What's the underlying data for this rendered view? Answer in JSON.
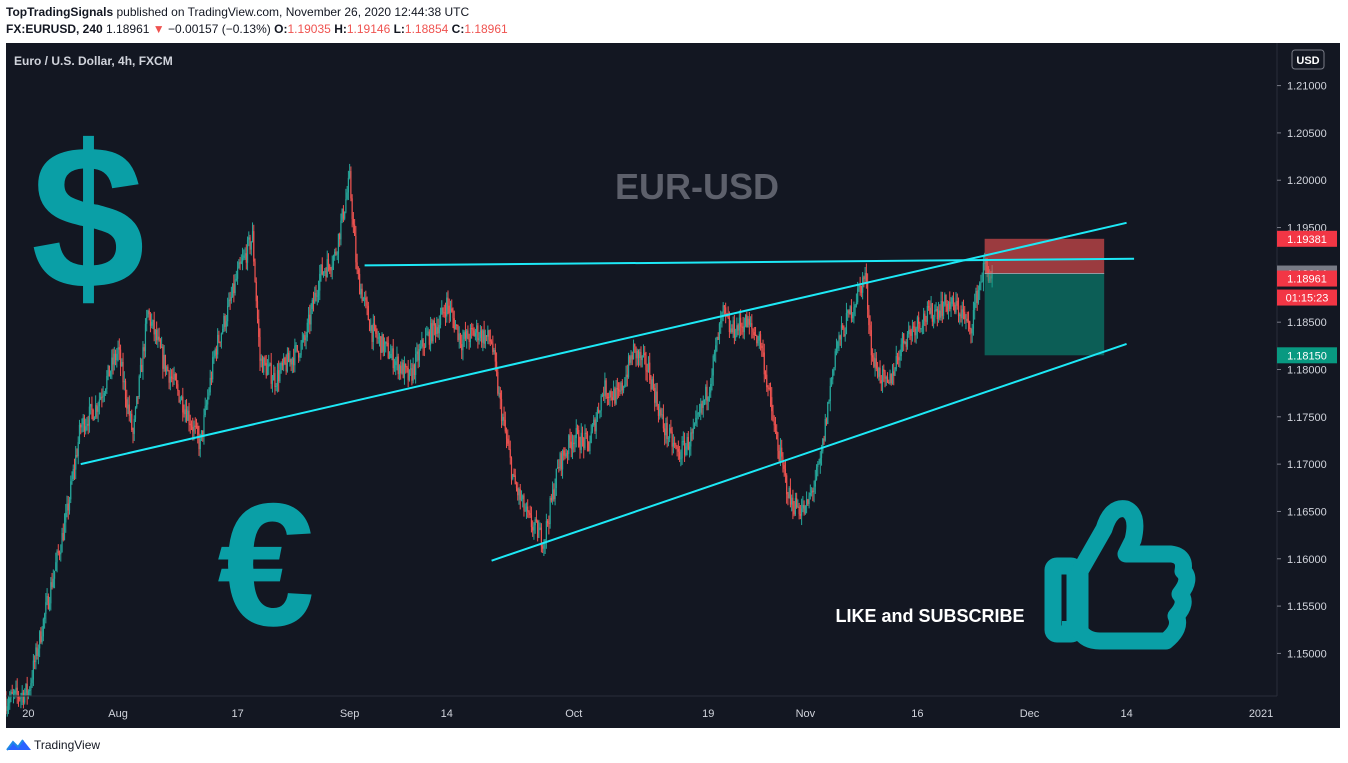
{
  "header": {
    "publisher": "TopTradingSignals",
    "published_text": "published on TradingView.com, November 26, 2020 12:44:38 UTC",
    "symbol": "FX:EURUSD, 240",
    "last": "1.18961",
    "change_arrow": "▼",
    "change": "−0.00157 (−0.13%)",
    "o_label": "O:",
    "o_value": "1.19035",
    "h_label": "H:",
    "h_value": "1.19146",
    "l_label": "L:",
    "l_value": "1.18854",
    "c_label": "C:",
    "c_value": "1.18961"
  },
  "footer": {
    "brand": "TradingView"
  },
  "colors": {
    "background": "#131722",
    "up": "#26a69a",
    "down": "#ef5350",
    "trendline": "#1de9f6",
    "teal_icon": "#0a9fa6"
  },
  "chart_data": {
    "type": "candlestick",
    "title": "Euro / U.S. Dollar, 4h, FXCM",
    "watermark": "EUR-USD",
    "currency": "USD",
    "ylim": [
      1.1455,
      1.2145
    ],
    "y_ticks": [
      1.21,
      1.205,
      1.2,
      1.195,
      1.19,
      1.185,
      1.18,
      1.175,
      1.17,
      1.165,
      1.16,
      1.155,
      1.15
    ],
    "y_tick_labels": [
      "1.21000",
      "1.20500",
      "1.20000",
      "1.19500",
      "1.19000",
      "1.18500",
      "1.18000",
      "1.17500",
      "1.17000",
      "1.16500",
      "1.16000",
      "1.15500",
      "1.15000"
    ],
    "x_range": [
      "2020-07-17",
      "2021-01-03"
    ],
    "x_ticks": [
      {
        "date": "2020-07-20",
        "label": "20"
      },
      {
        "date": "2020-08-01",
        "label": "Aug"
      },
      {
        "date": "2020-08-17",
        "label": "17"
      },
      {
        "date": "2020-09-01",
        "label": "Sep"
      },
      {
        "date": "2020-09-14",
        "label": "14"
      },
      {
        "date": "2020-10-01",
        "label": "Oct"
      },
      {
        "date": "2020-10-19",
        "label": "19"
      },
      {
        "date": "2020-11-01",
        "label": "Nov"
      },
      {
        "date": "2020-11-16",
        "label": "16"
      },
      {
        "date": "2020-12-01",
        "label": "Dec"
      },
      {
        "date": "2020-12-14",
        "label": "14"
      },
      {
        "date": "2021-01-01",
        "label": "2021"
      }
    ],
    "price_path": [
      [
        "2020-07-17",
        1.145
      ],
      [
        "2020-07-20",
        1.146
      ],
      [
        "2020-07-23",
        1.157
      ],
      [
        "2020-07-25",
        1.164
      ],
      [
        "2020-07-27",
        1.174
      ],
      [
        "2020-07-29",
        1.176
      ],
      [
        "2020-07-31",
        1.18
      ],
      [
        "2020-08-01",
        1.182
      ],
      [
        "2020-08-03",
        1.173
      ],
      [
        "2020-08-05",
        1.186
      ],
      [
        "2020-08-07",
        1.181
      ],
      [
        "2020-08-10",
        1.176
      ],
      [
        "2020-08-12",
        1.172
      ],
      [
        "2020-08-14",
        1.182
      ],
      [
        "2020-08-16",
        1.187
      ],
      [
        "2020-08-17",
        1.19
      ],
      [
        "2020-08-19",
        1.194
      ],
      [
        "2020-08-20",
        1.181
      ],
      [
        "2020-08-22",
        1.179
      ],
      [
        "2020-08-24",
        1.181
      ],
      [
        "2020-08-26",
        1.183
      ],
      [
        "2020-08-28",
        1.19
      ],
      [
        "2020-08-30",
        1.192
      ],
      [
        "2020-09-01",
        1.2
      ],
      [
        "2020-09-02",
        1.19
      ],
      [
        "2020-09-04",
        1.184
      ],
      [
        "2020-09-07",
        1.181
      ],
      [
        "2020-09-09",
        1.179
      ],
      [
        "2020-09-11",
        1.183
      ],
      [
        "2020-09-13",
        1.185
      ],
      [
        "2020-09-14",
        1.187
      ],
      [
        "2020-09-16",
        1.183
      ],
      [
        "2020-09-18",
        1.184
      ],
      [
        "2020-09-20",
        1.183
      ],
      [
        "2020-09-21",
        1.177
      ],
      [
        "2020-09-23",
        1.168
      ],
      [
        "2020-09-25",
        1.164
      ],
      [
        "2020-09-27",
        1.162
      ],
      [
        "2020-09-29",
        1.17
      ],
      [
        "2020-10-01",
        1.173
      ],
      [
        "2020-10-03",
        1.172
      ],
      [
        "2020-10-05",
        1.178
      ],
      [
        "2020-10-07",
        1.177
      ],
      [
        "2020-10-09",
        1.182
      ],
      [
        "2020-10-11",
        1.18
      ],
      [
        "2020-10-13",
        1.174
      ],
      [
        "2020-10-15",
        1.171
      ],
      [
        "2020-10-17",
        1.173
      ],
      [
        "2020-10-19",
        1.178
      ],
      [
        "2020-10-21",
        1.186
      ],
      [
        "2020-10-22",
        1.184
      ],
      [
        "2020-10-24",
        1.185
      ],
      [
        "2020-10-26",
        1.183
      ],
      [
        "2020-10-28",
        1.173
      ],
      [
        "2020-10-30",
        1.166
      ],
      [
        "2020-11-01",
        1.165
      ],
      [
        "2020-11-03",
        1.17
      ],
      [
        "2020-11-05",
        1.182
      ],
      [
        "2020-11-07",
        1.186
      ],
      [
        "2020-11-09",
        1.19
      ],
      [
        "2020-11-10",
        1.181
      ],
      [
        "2020-11-12",
        1.178
      ],
      [
        "2020-11-14",
        1.183
      ],
      [
        "2020-11-16",
        1.185
      ],
      [
        "2020-11-18",
        1.186
      ],
      [
        "2020-11-20",
        1.187
      ],
      [
        "2020-11-22",
        1.186
      ],
      [
        "2020-11-23",
        1.184
      ],
      [
        "2020-11-24",
        1.188
      ],
      [
        "2020-11-25",
        1.191
      ],
      [
        "2020-11-26",
        1.1896
      ]
    ],
    "trendlines": [
      {
        "name": "upper-channel",
        "from": [
          "2020-07-27",
          1.17
        ],
        "to": [
          "2020-12-14",
          1.1955
        ]
      },
      {
        "name": "lower-channel",
        "from": [
          "2020-09-20",
          1.1598
        ],
        "to": [
          "2020-12-14",
          1.1827
        ]
      },
      {
        "name": "resistance",
        "from": [
          "2020-09-03",
          1.191
        ],
        "to": [
          "2020-12-15",
          1.1917
        ]
      }
    ],
    "position": {
      "entry": 1.19014,
      "stop": 1.19381,
      "target": 1.1815,
      "from": "2020-11-25",
      "to": "2020-12-11"
    },
    "price_tags": [
      {
        "value": 1.19381,
        "label": "1.19381",
        "color": "#f23645"
      },
      {
        "value": 1.19014,
        "label": "1.19014",
        "color": "#787b86"
      },
      {
        "value": 1.18961,
        "label": "1.18961",
        "color": "#f23645"
      },
      {
        "label": "01:15:23",
        "color": "#f23645"
      },
      {
        "value": 1.1815,
        "label": "1.18150",
        "color": "#089981"
      }
    ],
    "annotations": {
      "cta": "LIKE and SUBSCRIBE"
    }
  }
}
